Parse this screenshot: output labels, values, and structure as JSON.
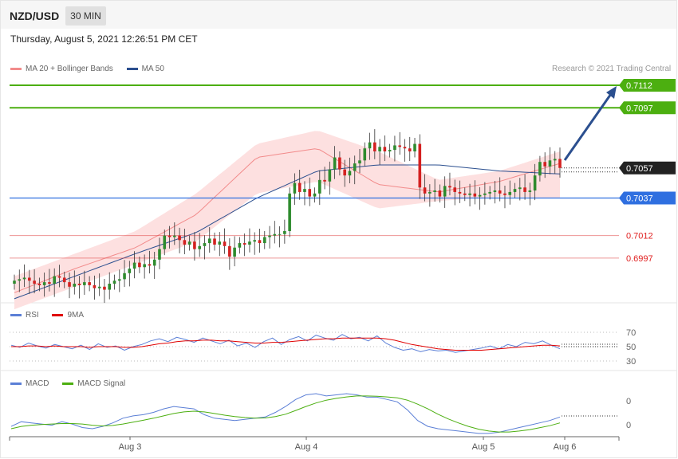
{
  "header": {
    "symbol": "NZD/USD",
    "timeframe": "30 MIN",
    "datetime": "Thursday, August 5, 2021 12:26:51 PM CET",
    "copyright": "Research © 2021 Trading Central"
  },
  "legends": {
    "price": [
      {
        "label": "MA 20 + Bollinger Bands",
        "color": "#f28b8b"
      },
      {
        "label": "MA 50",
        "color": "#2b4f8f"
      }
    ],
    "rsi": [
      {
        "label": "RSI",
        "color": "#5b7fd6"
      },
      {
        "label": "9MA",
        "color": "#e00000"
      }
    ],
    "macd": [
      {
        "label": "MACD",
        "color": "#5b7fd6"
      },
      {
        "label": "MACD Signal",
        "color": "#4caf10"
      }
    ]
  },
  "chart_data": [
    {
      "type": "candlestick",
      "name": "price",
      "x_labels": [
        "Aug 3",
        "Aug 4",
        "Aug 5",
        "Aug 6"
      ],
      "current_price": "0.7057",
      "levels": [
        {
          "value": 0.7112,
          "label": "0.7112",
          "kind": "resistance",
          "color": "#4caf10"
        },
        {
          "value": 0.7097,
          "label": "0.7097",
          "kind": "resistance",
          "color": "#4caf10"
        },
        {
          "value": 0.7037,
          "label": "0.7037",
          "kind": "pivot",
          "color": "#2f6fe0"
        },
        {
          "value": 0.7012,
          "label": "0.7012",
          "kind": "support",
          "color": "#e04040"
        },
        {
          "value": 0.6997,
          "label": "0.6997",
          "kind": "support",
          "color": "#e04040"
        }
      ],
      "close": [
        0.6982,
        0.6983,
        0.6984,
        0.6982,
        0.698,
        0.6979,
        0.6981,
        0.698,
        0.6985,
        0.6984,
        0.6981,
        0.6978,
        0.698,
        0.6979,
        0.6981,
        0.6979,
        0.6977,
        0.6978,
        0.6976,
        0.698,
        0.6982,
        0.6983,
        0.6987,
        0.699,
        0.6994,
        0.6991,
        0.6993,
        0.6992,
        0.6996,
        0.7003,
        0.7012,
        0.7011,
        0.7012,
        0.7009,
        0.7006,
        0.7008,
        0.7003,
        0.7005,
        0.7007,
        0.701,
        0.7006,
        0.7008,
        0.7005,
        0.6998,
        0.7004,
        0.7007,
        0.7006,
        0.7008,
        0.7009,
        0.7007,
        0.7011,
        0.7012,
        0.7013,
        0.7013,
        0.7015,
        0.704,
        0.7047,
        0.7041,
        0.7043,
        0.7038,
        0.704,
        0.7049,
        0.7048,
        0.7056,
        0.7064,
        0.7056,
        0.7052,
        0.7055,
        0.706,
        0.7062,
        0.707,
        0.7074,
        0.7068,
        0.7071,
        0.7068,
        0.7069,
        0.7072,
        0.7071,
        0.707,
        0.7068,
        0.7073,
        0.7044,
        0.704,
        0.7041,
        0.7042,
        0.7038,
        0.7045,
        0.7044,
        0.7041,
        0.704,
        0.7039,
        0.704,
        0.7038,
        0.7039,
        0.704,
        0.7041,
        0.7042,
        0.704,
        0.7039,
        0.7041,
        0.7043,
        0.7044,
        0.7041,
        0.7042,
        0.7052,
        0.7061,
        0.7058,
        0.7062,
        0.7063,
        0.7057
      ],
      "ma50": [
        0.697,
        0.6985,
        0.7,
        0.7014,
        0.7037,
        0.7055,
        0.7059,
        0.7059,
        0.7055,
        0.7053
      ],
      "ma20": [
        0.6974,
        0.699,
        0.7004,
        0.7026,
        0.7064,
        0.707,
        0.7046,
        0.7041,
        0.7048,
        0.706
      ],
      "bb_upper": [
        0.6985,
        0.7,
        0.7015,
        0.704,
        0.7073,
        0.7082,
        0.7068,
        0.7049,
        0.7055,
        0.7068
      ],
      "bb_lower": [
        0.6963,
        0.6978,
        0.6993,
        0.7008,
        0.704,
        0.7048,
        0.703,
        0.7035,
        0.7038,
        0.7037
      ]
    },
    {
      "type": "line",
      "name": "rsi",
      "y_ticks": [
        "70",
        "50",
        "30"
      ],
      "series": [
        {
          "name": "RSI",
          "values": [
            52,
            49,
            55,
            51,
            48,
            53,
            50,
            47,
            52,
            46,
            54,
            49,
            51,
            45,
            50,
            53,
            58,
            61,
            57,
            63,
            60,
            56,
            62,
            58,
            54,
            59,
            51,
            55,
            49,
            57,
            62,
            53,
            60,
            64,
            58,
            66,
            62,
            59,
            67,
            61,
            63,
            58,
            65,
            55,
            49,
            45,
            47,
            43,
            46,
            44,
            45,
            42,
            44,
            46,
            48,
            51,
            47,
            53,
            50,
            56,
            54,
            58,
            52,
            47
          ]
        },
        {
          "name": "9MA",
          "values": [
            50,
            50,
            51,
            51,
            50,
            51,
            50,
            50,
            50,
            49,
            50,
            50,
            50,
            49,
            49,
            50,
            52,
            54,
            55,
            57,
            58,
            58,
            59,
            59,
            58,
            58,
            57,
            56,
            55,
            55,
            56,
            56,
            57,
            58,
            59,
            60,
            61,
            61,
            62,
            62,
            62,
            62,
            62,
            61,
            59,
            56,
            53,
            51,
            49,
            47,
            46,
            45,
            45,
            45,
            45,
            46,
            47,
            48,
            49,
            50,
            51,
            52,
            52,
            51
          ]
        }
      ]
    },
    {
      "type": "line",
      "name": "macd",
      "y_ticks": [
        "0",
        "0"
      ],
      "series": [
        {
          "name": "MACD",
          "values": [
            0.1,
            0.3,
            0.25,
            0.2,
            0.15,
            0.3,
            0.2,
            0.05,
            0.0,
            0.1,
            0.25,
            0.45,
            0.55,
            0.6,
            0.7,
            0.85,
            0.95,
            0.9,
            0.85,
            0.6,
            0.45,
            0.4,
            0.35,
            0.4,
            0.45,
            0.5,
            0.7,
            0.95,
            1.25,
            1.45,
            1.5,
            1.4,
            1.45,
            1.5,
            1.45,
            1.35,
            1.35,
            1.25,
            1.15,
            0.8,
            0.35,
            0.1,
            0.0,
            -0.05,
            -0.1,
            -0.15,
            -0.2,
            -0.2,
            -0.15,
            -0.05,
            0.05,
            0.15,
            0.25,
            0.35,
            0.5
          ]
        },
        {
          "name": "MACD Signal",
          "values": [
            0.0,
            0.1,
            0.15,
            0.18,
            0.2,
            0.22,
            0.22,
            0.2,
            0.15,
            0.12,
            0.14,
            0.2,
            0.28,
            0.36,
            0.45,
            0.55,
            0.65,
            0.72,
            0.75,
            0.72,
            0.65,
            0.58,
            0.52,
            0.48,
            0.45,
            0.46,
            0.52,
            0.62,
            0.78,
            0.95,
            1.1,
            1.22,
            1.3,
            1.36,
            1.4,
            1.4,
            1.39,
            1.36,
            1.32,
            1.22,
            1.05,
            0.85,
            0.62,
            0.42,
            0.25,
            0.1,
            -0.02,
            -0.1,
            -0.14,
            -0.14,
            -0.1,
            -0.04,
            0.04,
            0.13,
            0.25
          ]
        }
      ]
    }
  ]
}
